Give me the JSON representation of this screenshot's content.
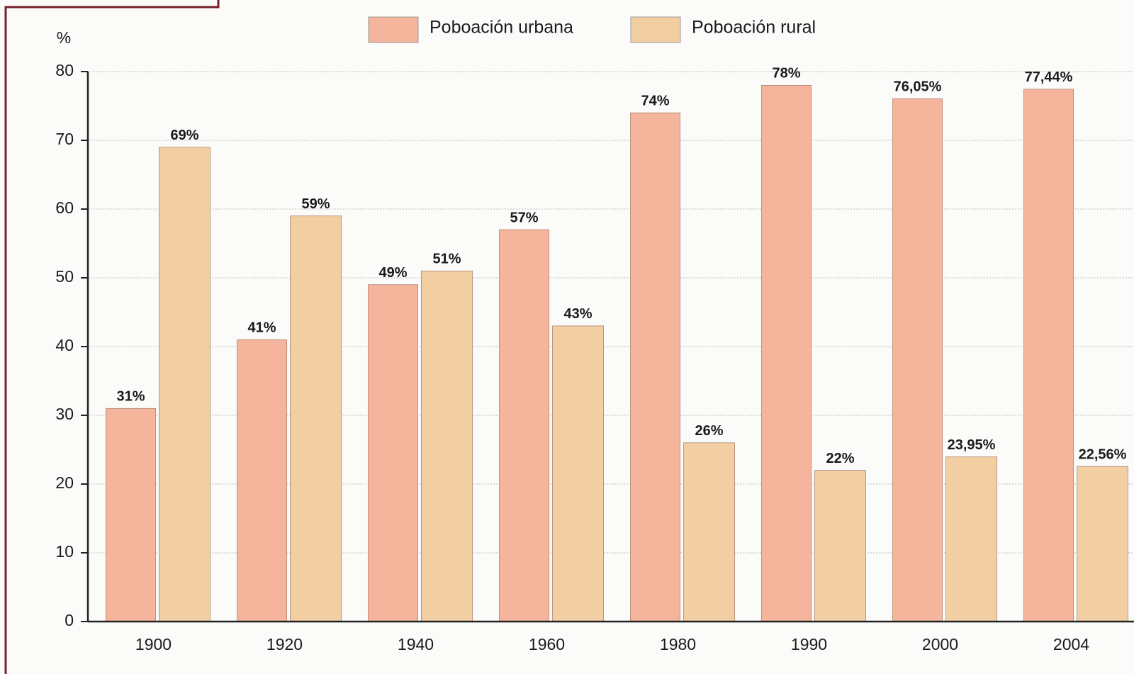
{
  "chart_data": {
    "type": "bar",
    "ylabel": "%",
    "categories": [
      "1900",
      "1920",
      "1940",
      "1960",
      "1980",
      "1990",
      "2000",
      "2004"
    ],
    "series": [
      {
        "name": "Poboación urbana",
        "color": "#f5b49c",
        "values": [
          31,
          41,
          49,
          57,
          74,
          78,
          76.05,
          77.44
        ],
        "value_labels": [
          "31%",
          "41%",
          "49%",
          "57%",
          "74%",
          "78%",
          "76,05%",
          "77,44%"
        ]
      },
      {
        "name": "Poboación rural",
        "color": "#f2cfa3",
        "values": [
          69,
          59,
          51,
          43,
          26,
          22,
          23.95,
          22.56
        ],
        "value_labels": [
          "69%",
          "59%",
          "51%",
          "43%",
          "26%",
          "22%",
          "23,95%",
          "22,56%"
        ]
      }
    ],
    "ylim": [
      0,
      80
    ],
    "yticks": [
      0,
      10,
      20,
      30,
      40,
      50,
      60,
      70,
      80
    ],
    "grid": true
  }
}
